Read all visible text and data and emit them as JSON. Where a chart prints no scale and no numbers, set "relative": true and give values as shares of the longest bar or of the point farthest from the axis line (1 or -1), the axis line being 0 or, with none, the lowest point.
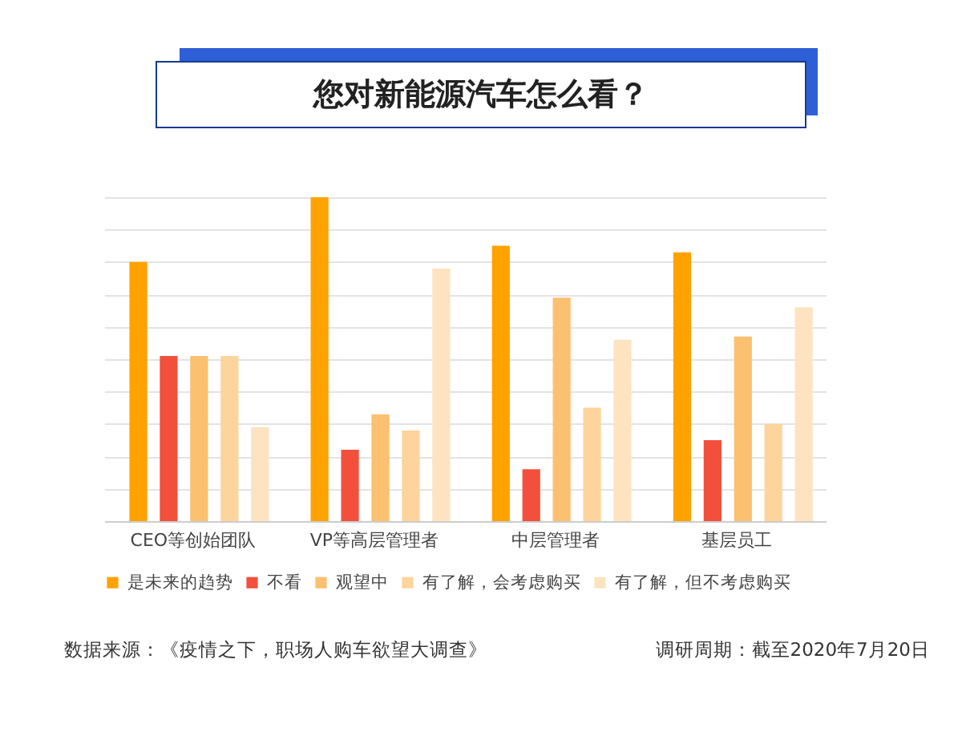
{
  "chart_data": {
    "type": "bar",
    "title": "您对新能源汽车怎么看？",
    "relative": true,
    "grid": "y",
    "legend": "bottom",
    "categories": [
      "CEO等创始团队",
      "VP等高层管理者",
      "中层管理者",
      "基层员工"
    ],
    "series": [
      {
        "name": "是未来的趋势",
        "color": "#ffa200",
        "values": [
          0.8,
          1,
          0.85,
          0.83
        ]
      },
      {
        "name": "不看",
        "color": "#f2503c",
        "values": [
          0.51,
          0.22,
          0.16,
          0.25
        ]
      },
      {
        "name": "观望中",
        "color": "#fbc070",
        "values": [
          0.51,
          0.33,
          0.69,
          0.57
        ]
      },
      {
        "name": "有了解，会考虑购买",
        "color": "#fdd49c",
        "values": [
          0.51,
          0.28,
          0.35,
          0.3
        ]
      },
      {
        "name": "有了解，但不考虑购买",
        "color": "#fde3c0",
        "values": [
          0.29,
          0.78,
          0.56,
          0.66
        ]
      }
    ],
    "annotations": [
      "数据来源：《疫情之下，职场人购车欲望大调查》",
      "调研周期：截至2020年7月20日"
    ]
  }
}
